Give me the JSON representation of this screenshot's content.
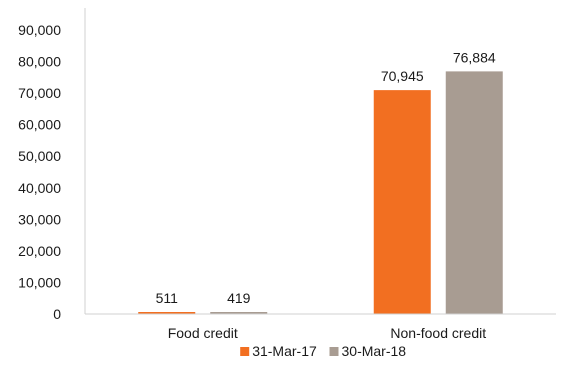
{
  "chart_data": {
    "type": "bar",
    "categories": [
      "Food credit",
      "Non-food credit"
    ],
    "series": [
      {
        "name": "31-Mar-17",
        "values": [
          511,
          70945
        ],
        "labels": [
          "511",
          "70,945"
        ],
        "color": "#f26f21"
      },
      {
        "name": "30-Mar-18",
        "values": [
          419,
          76884
        ],
        "labels": [
          "419",
          "76,884"
        ],
        "color": "#a89c92"
      }
    ],
    "ylim": [
      0,
      90000
    ],
    "yticks": [
      0,
      10000,
      20000,
      30000,
      40000,
      50000,
      60000,
      70000,
      80000,
      90000
    ],
    "ytick_labels": [
      "0",
      "10,000",
      "20,000",
      "30,000",
      "40,000",
      "50,000",
      "60,000",
      "70,000",
      "80,000",
      "90,000"
    ],
    "grid": false,
    "legend": "bottom-center"
  }
}
